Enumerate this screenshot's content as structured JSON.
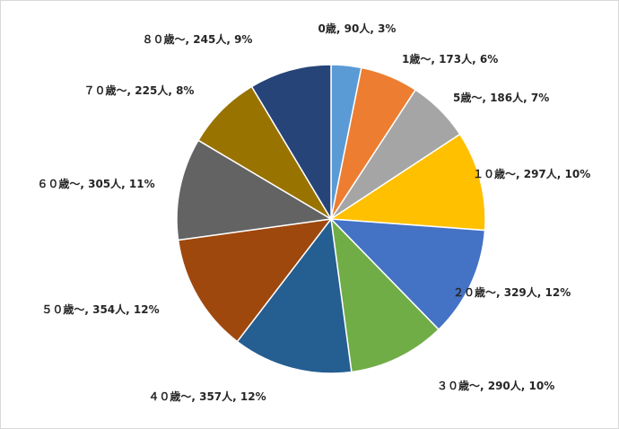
{
  "chart_data": {
    "type": "pie",
    "title": "",
    "legend": "none",
    "start_angle_deg": 0,
    "direction": "clockwise",
    "slices": [
      {
        "label": "0歳, 90人, 3%",
        "category": "0歳",
        "count": 90,
        "percent": 3,
        "color": "#5B9BD5"
      },
      {
        "label": "1歳～, 173人, 6%",
        "category": "1歳～",
        "count": 173,
        "percent": 6,
        "color": "#ED7D31"
      },
      {
        "label": "5歳～, 186人, 7%",
        "category": "5歳～",
        "count": 186,
        "percent": 7,
        "color": "#A5A5A5"
      },
      {
        "label": "１０歳～, 297人, 10%",
        "category": "１０歳～",
        "count": 297,
        "percent": 10,
        "color": "#FFC000"
      },
      {
        "label": "２０歳～, 329人, 12%",
        "category": "２０歳～",
        "count": 329,
        "percent": 12,
        "color": "#4472C4"
      },
      {
        "label": "３０歳～, 290人, 10%",
        "category": "３０歳～",
        "count": 290,
        "percent": 10,
        "color": "#70AD47"
      },
      {
        "label": "４０歳～, 357人, 12%",
        "category": "４０歳～",
        "count": 357,
        "percent": 12,
        "color": "#255E91"
      },
      {
        "label": "５０歳～, 354人, 12%",
        "category": "５０歳～",
        "count": 354,
        "percent": 12,
        "color": "#9E480E"
      },
      {
        "label": "６０歳～, 305人, 11%",
        "category": "６０歳～",
        "count": 305,
        "percent": 11,
        "color": "#636363"
      },
      {
        "label": "７０歳～, 225人, 8%",
        "category": "７０歳～",
        "count": 225,
        "percent": 8,
        "color": "#997300"
      },
      {
        "label": "８０歳～, 245人, 9%",
        "category": "８０歳～",
        "count": 245,
        "percent": 9,
        "color": "#264478"
      }
    ]
  }
}
